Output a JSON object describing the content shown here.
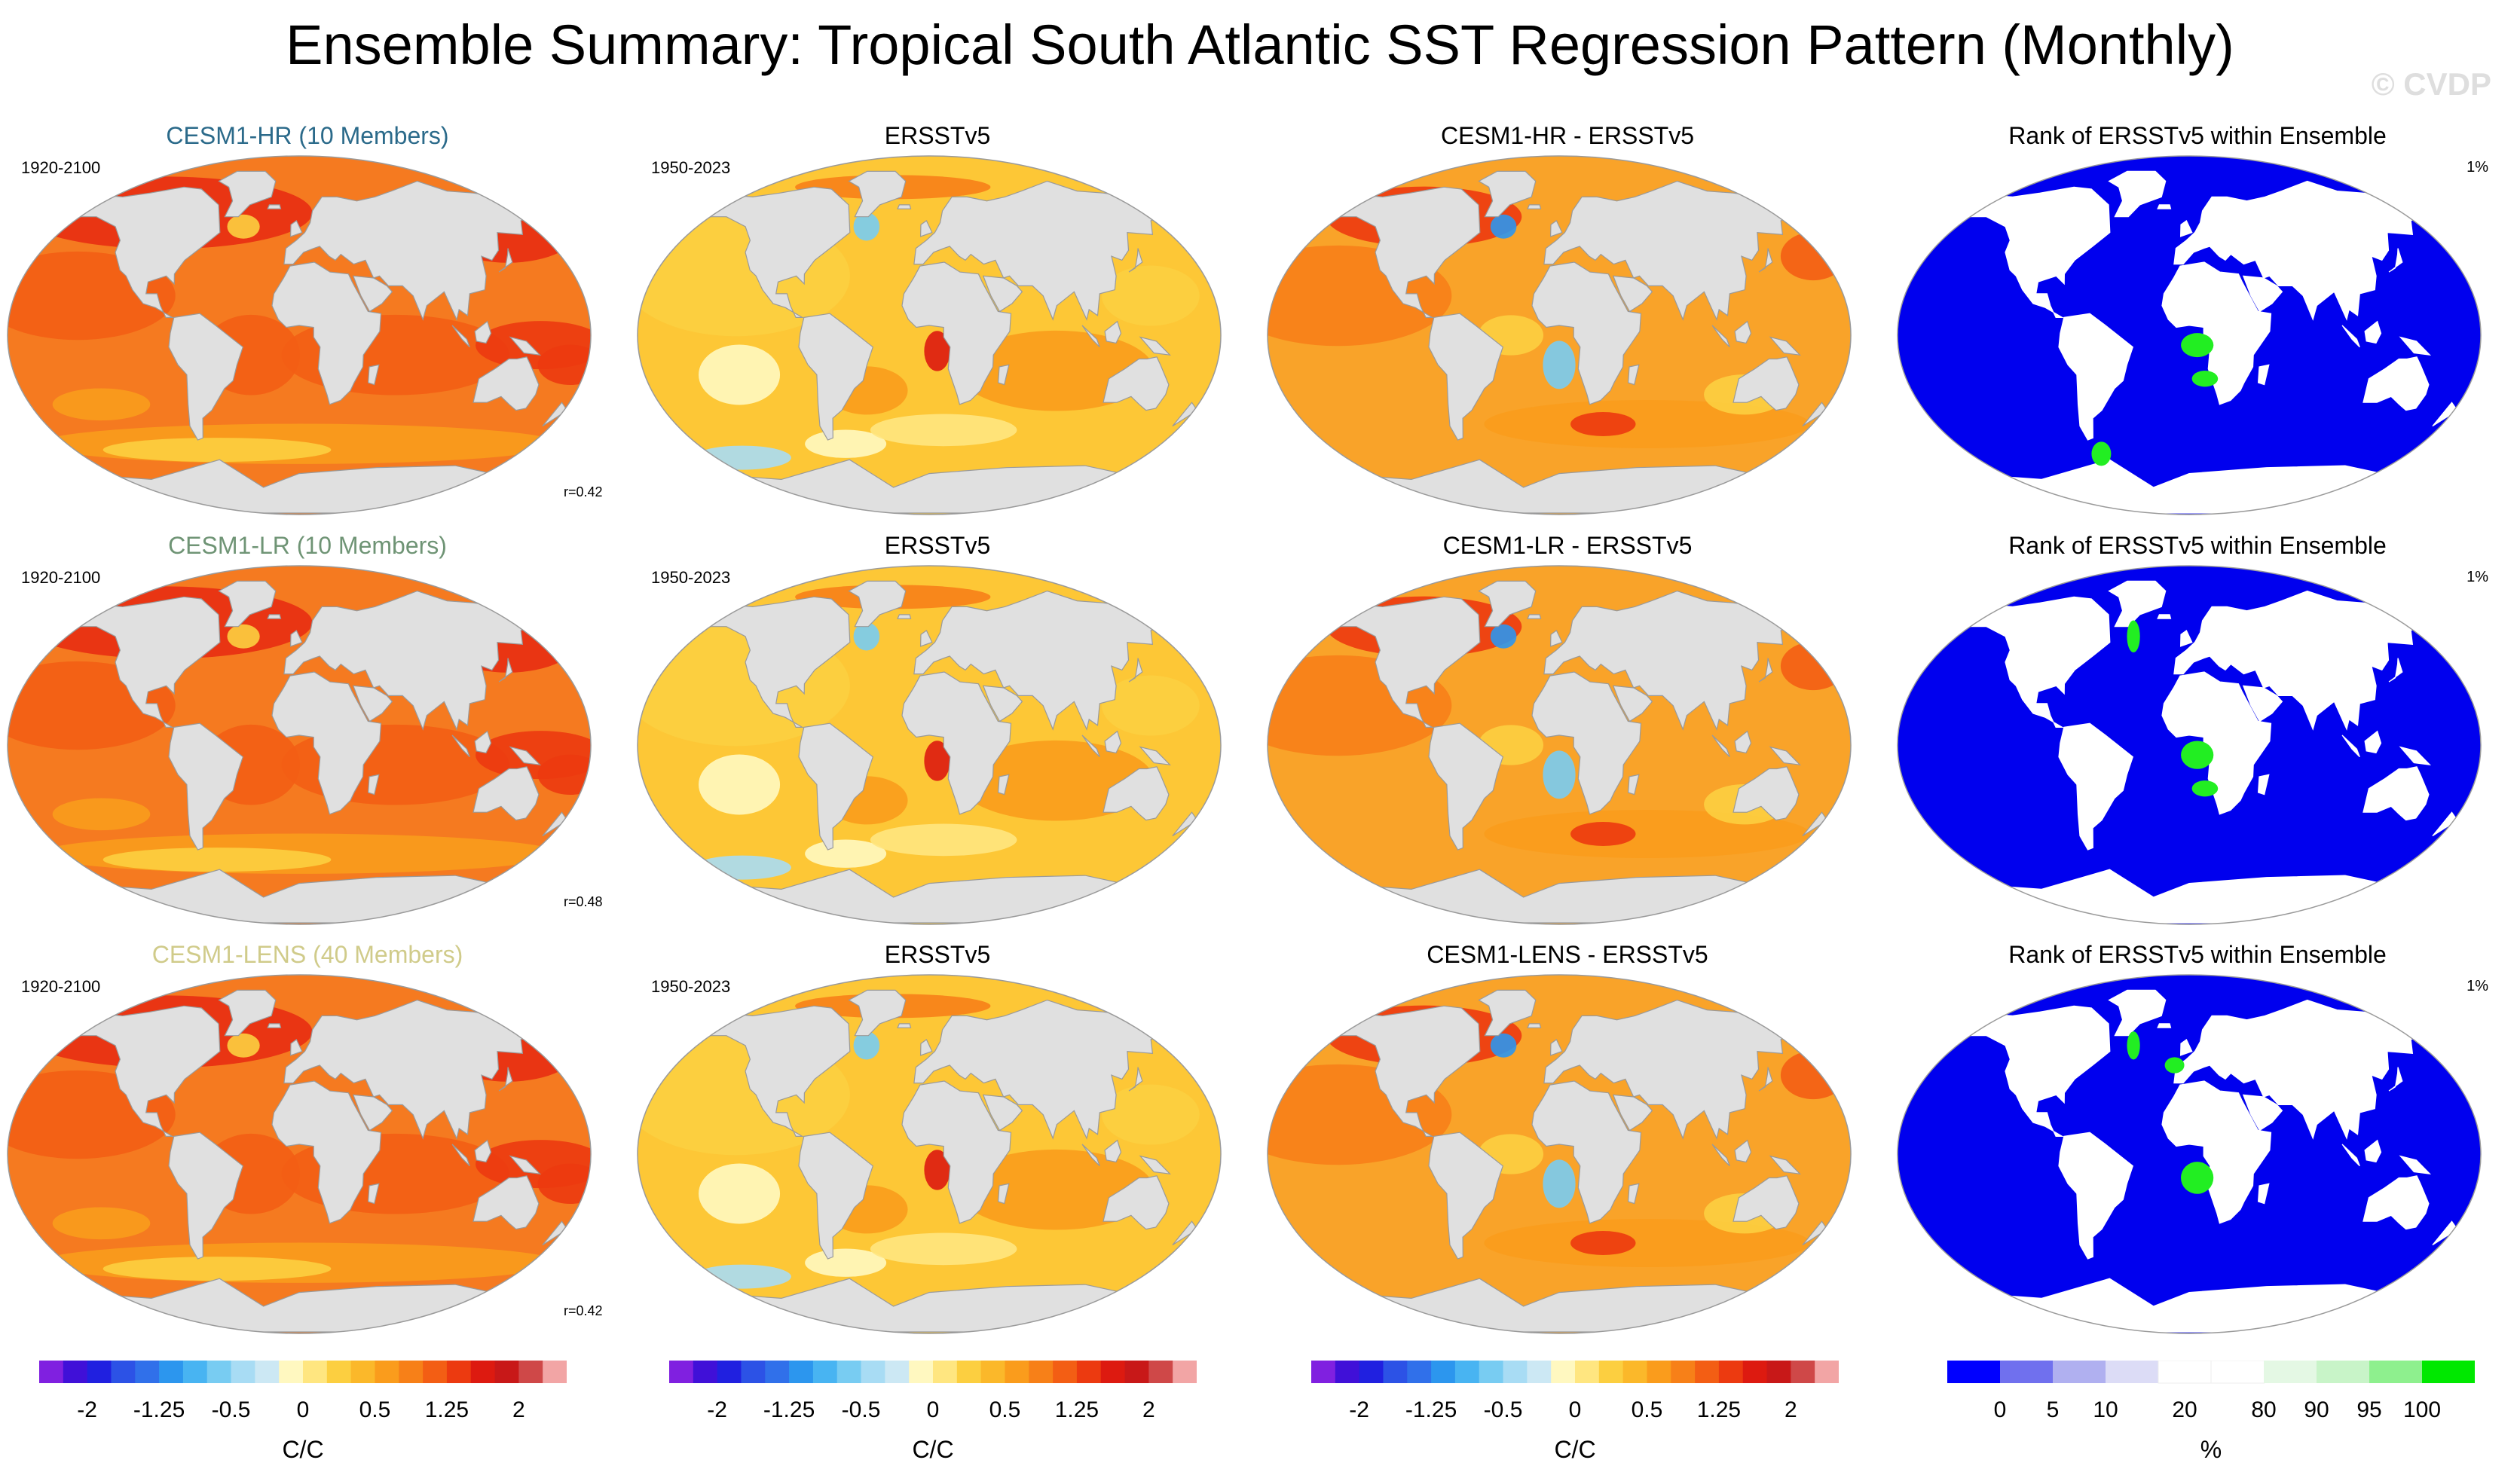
{
  "title": "Ensemble Summary: Tropical South Atlantic SST Regression Pattern (Monthly)",
  "watermark": "© CVDP",
  "rows": [
    {
      "model": {
        "title": "CESM1-HR (10 Members)",
        "title_color": "#2b6a8a",
        "period": "1920-2100",
        "r": "r=0.42"
      },
      "obs": {
        "title": "ERSSTv5",
        "period": "1950-2023"
      },
      "diff": {
        "title": "CESM1-HR - ERSSTv5"
      },
      "rank": {
        "title": "Rank of ERSSTv5 within Ensemble",
        "pct": "1%"
      }
    },
    {
      "model": {
        "title": "CESM1-LR (10 Members)",
        "title_color": "#6f9475",
        "period": "1920-2100",
        "r": "r=0.48"
      },
      "obs": {
        "title": "ERSSTv5",
        "period": "1950-2023"
      },
      "diff": {
        "title": "CESM1-LR - ERSSTv5"
      },
      "rank": {
        "title": "Rank of ERSSTv5 within Ensemble",
        "pct": "1%"
      }
    },
    {
      "model": {
        "title": "CESM1-LENS (40 Members)",
        "title_color": "#d0cb8a",
        "period": "1920-2100",
        "r": "r=0.42"
      },
      "obs": {
        "title": "ERSSTv5",
        "period": "1950-2023"
      },
      "diff": {
        "title": "CESM1-LENS - ERSSTv5"
      },
      "rank": {
        "title": "Rank of ERSSTv5 within Ensemble",
        "pct": "1%"
      }
    }
  ],
  "colorbars": {
    "regression": {
      "label": "C/C",
      "ticks": [
        "-2",
        "-1.25",
        "-0.5",
        "0",
        "0.5",
        "1.25",
        "2"
      ],
      "colors": [
        "#8020e0",
        "#4010d8",
        "#2020e0",
        "#2c52e6",
        "#3070ea",
        "#2c96ee",
        "#48b4f2",
        "#78ccf2",
        "#a8dcf4",
        "#cce8f4",
        "#fff8c0",
        "#ffe680",
        "#fccf40",
        "#fbb82a",
        "#fa9c1c",
        "#f78018",
        "#f35e14",
        "#ec3a10",
        "#dd1a10",
        "#c81818",
        "#cf4848",
        "#f2a5a5"
      ]
    },
    "rank": {
      "label": "%",
      "ticks": [
        "0",
        "5",
        "10",
        "20",
        "80",
        "90",
        "95",
        "100"
      ],
      "colors": [
        "#0000ff",
        "#7070ee",
        "#b0b0f0",
        "#dcdcf6",
        "#ffffff",
        "#ffffff",
        "#e4f8e4",
        "#c8f4c8",
        "#8ef08e",
        "#00e800"
      ]
    }
  },
  "map_colors": {
    "land": "#e0e0e0",
    "coast": "#9a9a9a",
    "model_ocean": "#f57a20",
    "obs_ocean": "#fdc736",
    "diff_ocean": "#f9a329",
    "rank_ocean": "#0000ee",
    "rank_land": "#ffffff",
    "rank_highlight": "#22ee22"
  }
}
